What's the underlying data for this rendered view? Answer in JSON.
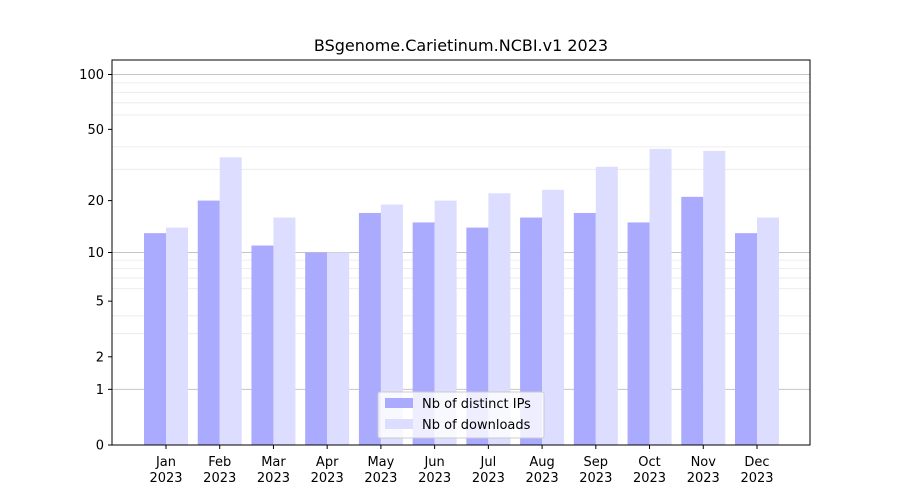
{
  "chart_data": {
    "type": "bar",
    "title": "BSgenome.Carietinum.NCBI.v1 2023",
    "xlabel": "",
    "ylabel": "",
    "yscale": "log(1+y)",
    "ylim": [
      0,
      120
    ],
    "yticks": [
      0,
      1,
      2,
      5,
      10,
      20,
      50,
      100
    ],
    "ytick_labels": [
      "0",
      "1",
      "2",
      "5",
      "10",
      "20",
      "50",
      "100"
    ],
    "grid": "horizontal",
    "legend_position": "bottom-center",
    "categories": [
      [
        "Jan",
        "2023"
      ],
      [
        "Feb",
        "2023"
      ],
      [
        "Mar",
        "2023"
      ],
      [
        "Apr",
        "2023"
      ],
      [
        "May",
        "2023"
      ],
      [
        "Jun",
        "2023"
      ],
      [
        "Jul",
        "2023"
      ],
      [
        "Aug",
        "2023"
      ],
      [
        "Sep",
        "2023"
      ],
      [
        "Oct",
        "2023"
      ],
      [
        "Nov",
        "2023"
      ],
      [
        "Dec",
        "2023"
      ]
    ],
    "series": [
      {
        "name": "Nb of distinct IPs",
        "color": "#aaaaff",
        "values": [
          13,
          20,
          11,
          10,
          17,
          15,
          14,
          16,
          17,
          15,
          21,
          13
        ]
      },
      {
        "name": "Nb of downloads",
        "color": "#ddddff",
        "values": [
          14,
          35,
          16,
          10,
          19,
          20,
          22,
          23,
          31,
          39,
          38,
          16
        ]
      }
    ]
  }
}
